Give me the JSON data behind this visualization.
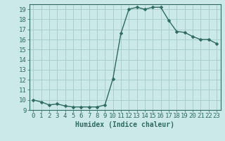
{
  "x": [
    0,
    1,
    2,
    3,
    4,
    5,
    6,
    7,
    8,
    9,
    10,
    11,
    12,
    13,
    14,
    15,
    16,
    17,
    18,
    19,
    20,
    21,
    22,
    23
  ],
  "y": [
    10.0,
    9.8,
    9.5,
    9.6,
    9.4,
    9.3,
    9.3,
    9.3,
    9.3,
    9.5,
    12.1,
    16.6,
    19.0,
    19.2,
    19.0,
    19.2,
    19.2,
    17.9,
    16.8,
    16.7,
    16.3,
    16.0,
    16.0,
    15.6
  ],
  "line_color": "#2e6b5e",
  "marker": "D",
  "marker_size": 2.5,
  "line_width": 1.0,
  "bg_color": "#cce9e9",
  "grid_color": "#aacece",
  "xlabel": "Humidex (Indice chaleur)",
  "xlabel_fontsize": 7,
  "tick_fontsize": 6.5,
  "ylim": [
    9,
    19.5
  ],
  "xlim": [
    -0.5,
    23.5
  ],
  "yticks": [
    9,
    10,
    11,
    12,
    13,
    14,
    15,
    16,
    17,
    18,
    19
  ],
  "xticks": [
    0,
    1,
    2,
    3,
    4,
    5,
    6,
    7,
    8,
    9,
    10,
    11,
    12,
    13,
    14,
    15,
    16,
    17,
    18,
    19,
    20,
    21,
    22,
    23
  ]
}
